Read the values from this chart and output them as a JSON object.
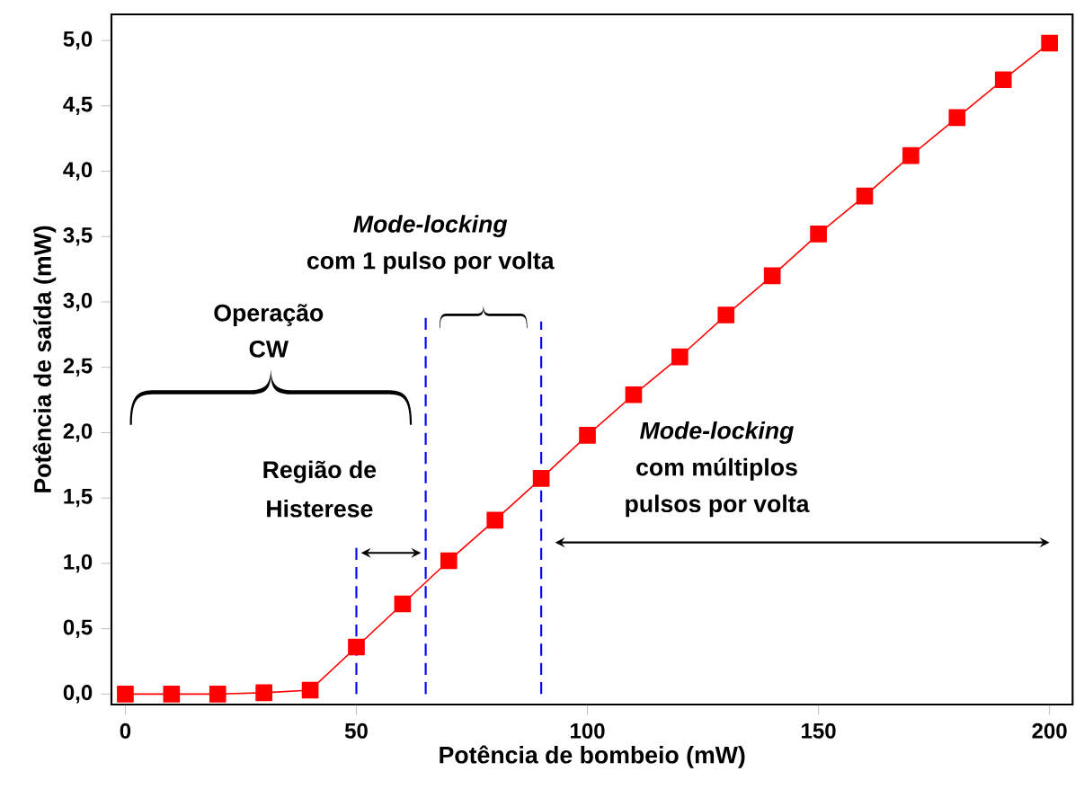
{
  "chart_data": {
    "type": "line",
    "xlabel": "Potência de bombeio (mW)",
    "ylabel": "Potência de saída (mW)",
    "xlim": [
      -3,
      205
    ],
    "ylim": [
      -0.08,
      5.2
    ],
    "xticks": [
      0,
      50,
      100,
      150,
      200
    ],
    "yticks": [
      {
        "value": 0,
        "label": "0,0"
      },
      {
        "value": 0.5,
        "label": "0,5"
      },
      {
        "value": 1,
        "label": "1,0"
      },
      {
        "value": 1.5,
        "label": "1,5"
      },
      {
        "value": 2,
        "label": "2,0"
      },
      {
        "value": 2.5,
        "label": "2,5"
      },
      {
        "value": 3,
        "label": "3,0"
      },
      {
        "value": 3.5,
        "label": "3,5"
      },
      {
        "value": 4,
        "label": "4,0"
      },
      {
        "value": 4.5,
        "label": "4,5"
      },
      {
        "value": 5,
        "label": "5,0"
      }
    ],
    "grid": false,
    "legend": false,
    "series": [
      {
        "color": "#ff0000",
        "marker": "square",
        "line_style": "solid",
        "x": [
          0,
          10,
          20,
          30,
          40,
          50,
          60,
          70,
          80,
          90,
          100,
          110,
          120,
          130,
          140,
          150,
          160,
          170,
          180,
          190,
          200
        ],
        "values": [
          0,
          0,
          0,
          0.01,
          0.03,
          0.36,
          0.69,
          1.02,
          1.33,
          1.65,
          1.98,
          2.29,
          2.58,
          2.9,
          3.2,
          3.52,
          3.81,
          4.12,
          4.41,
          4.7,
          4.98
        ]
      },
      {
        "color": "#0000ff",
        "marker": "none",
        "line_style": "dashed",
        "x": [
          50,
          50
        ],
        "values": [
          0,
          1.12
        ]
      },
      {
        "color": "#0000ff",
        "marker": "none",
        "line_style": "dashed",
        "x": [
          65,
          65
        ],
        "values": [
          0,
          2.88
        ]
      },
      {
        "color": "#0000ff",
        "marker": "none",
        "line_style": "dashed",
        "x": [
          90,
          90
        ],
        "values": [
          0,
          2.85
        ]
      }
    ],
    "annotations": [
      "Operação",
      "CW",
      "Mode-locking",
      "com 1 pulso por volta",
      "Região de",
      "Histerese",
      "Mode-locking",
      "com múltiplos",
      "pulsos por volta"
    ]
  }
}
